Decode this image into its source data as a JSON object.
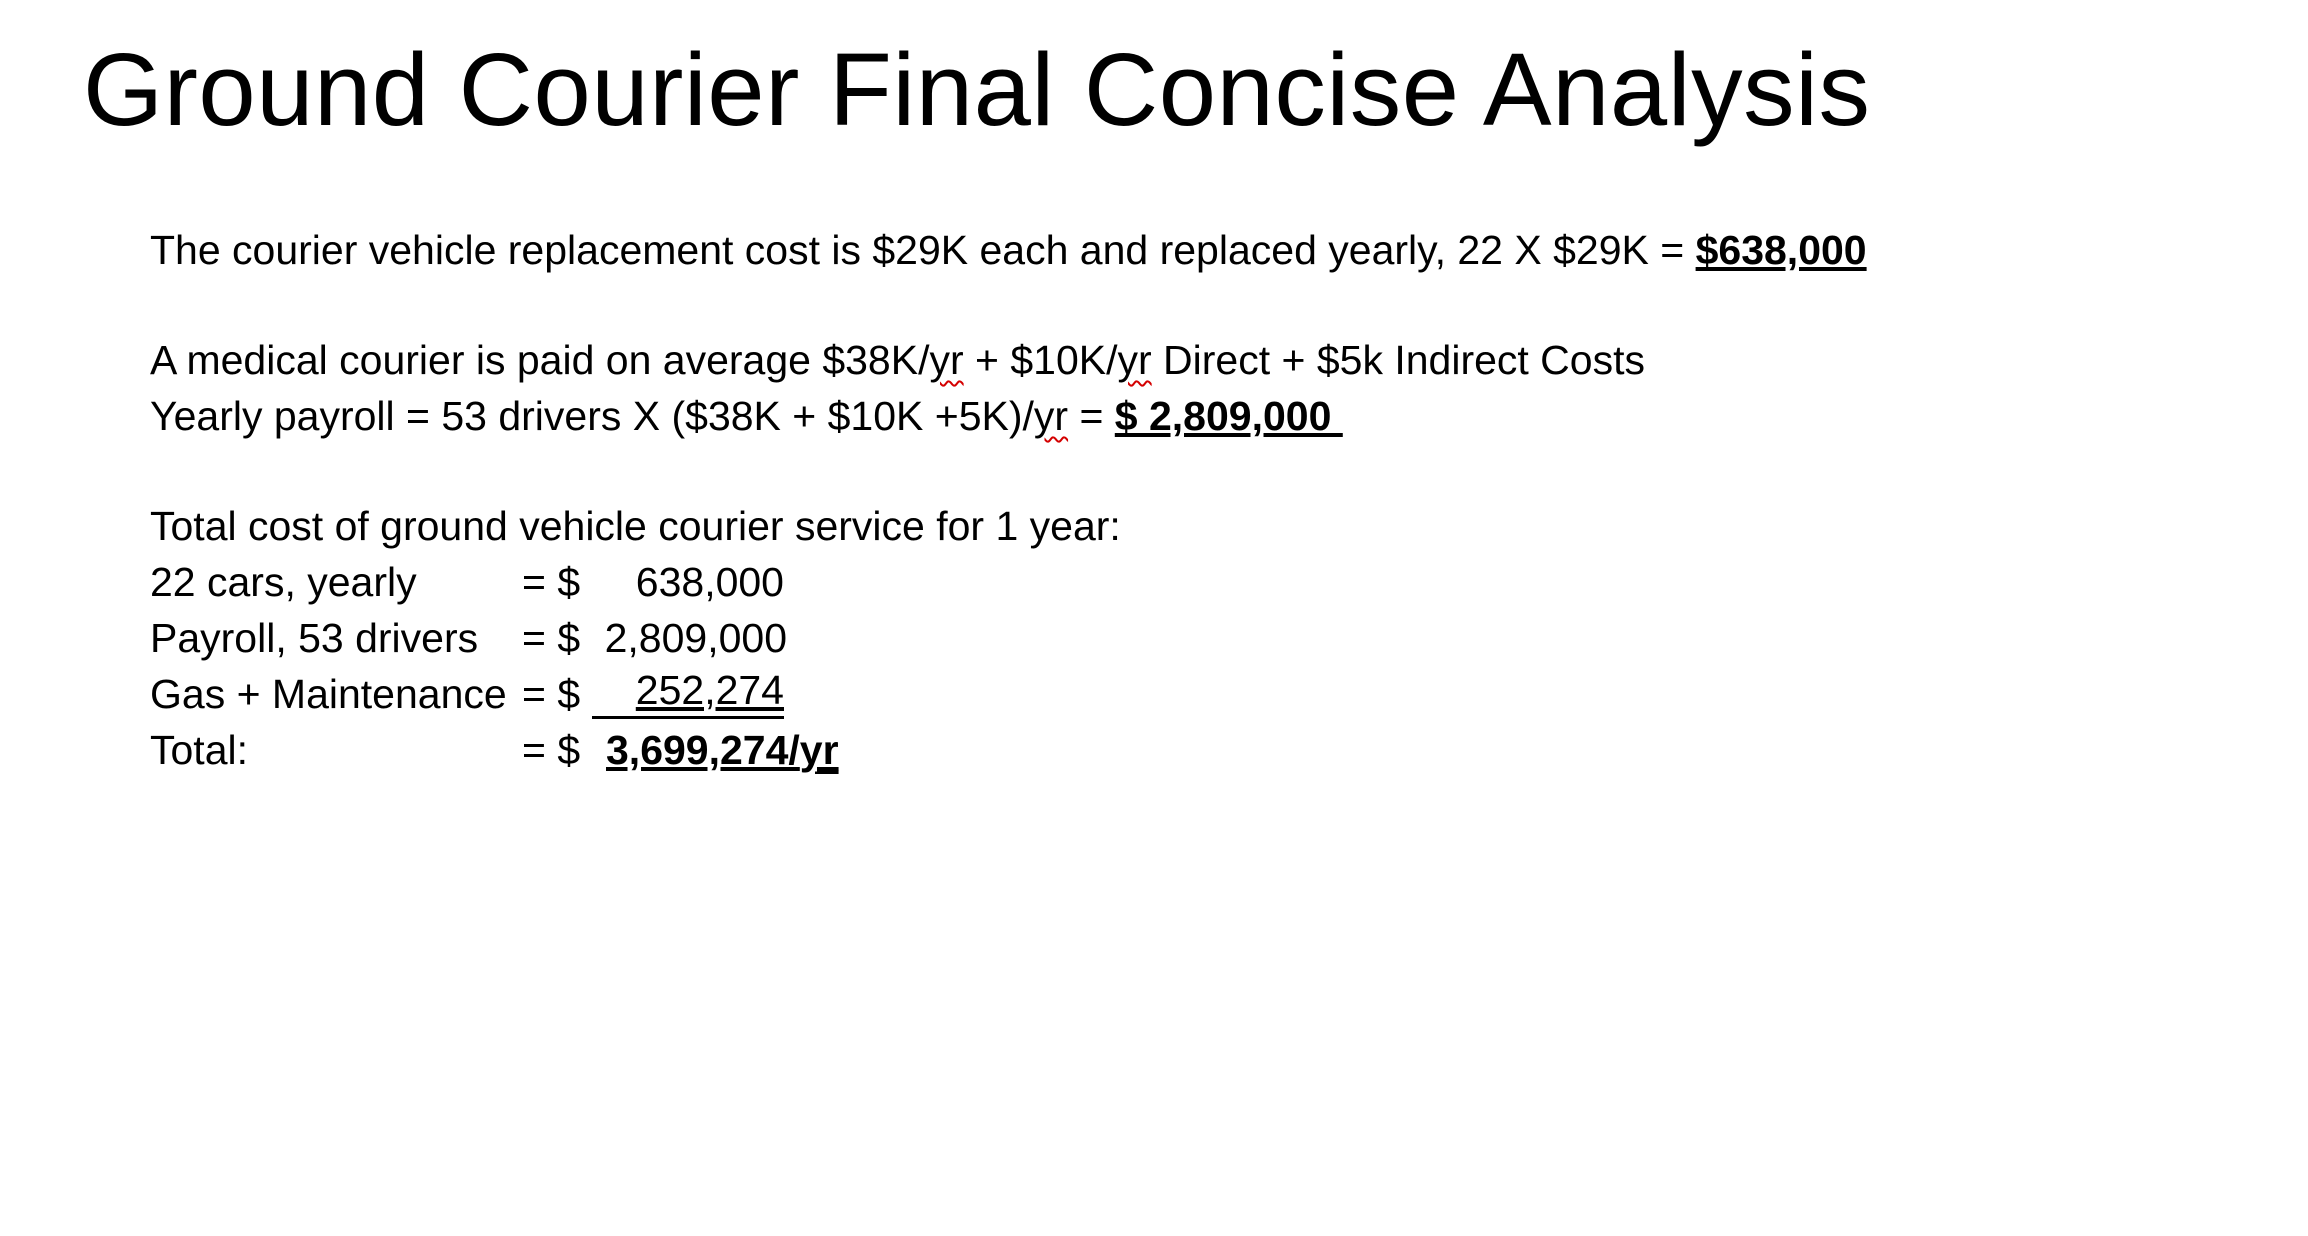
{
  "title": "Ground Courier Final Concise Analysis",
  "vehicle_line": {
    "text": "The courier vehicle replacement cost is $29K each and replaced yearly, 22 X $29K = ",
    "result": "$638,000"
  },
  "pay_line": {
    "part1": "A medical courier is paid on average $38K/",
    "yr1": "yr",
    "part2": " + $10K/",
    "yr2": "yr",
    "part3": " Direct + $5k Indirect Costs"
  },
  "payroll_line": {
    "part1": "Yearly payroll = 53 drivers X ($38K + $10K +5K)/",
    "yr": "yr",
    "part2": " = ",
    "result": "$ 2,809,000 "
  },
  "total_heading": "Total cost of ground vehicle courier service for 1 year:",
  "cost_rows": [
    {
      "label": "22 cars, yearly",
      "eq": "= $",
      "value": "638,000"
    },
    {
      "label": "Payroll, 53 drivers",
      "eq": "= $",
      "value": "2,809,000"
    },
    {
      "label": "Gas + Maintenance",
      "eq": "= $",
      "value": "252,274"
    }
  ],
  "total_row": {
    "label": "Total:",
    "eq": "= $",
    "value": "3,699,274/",
    "unit": "yr"
  }
}
